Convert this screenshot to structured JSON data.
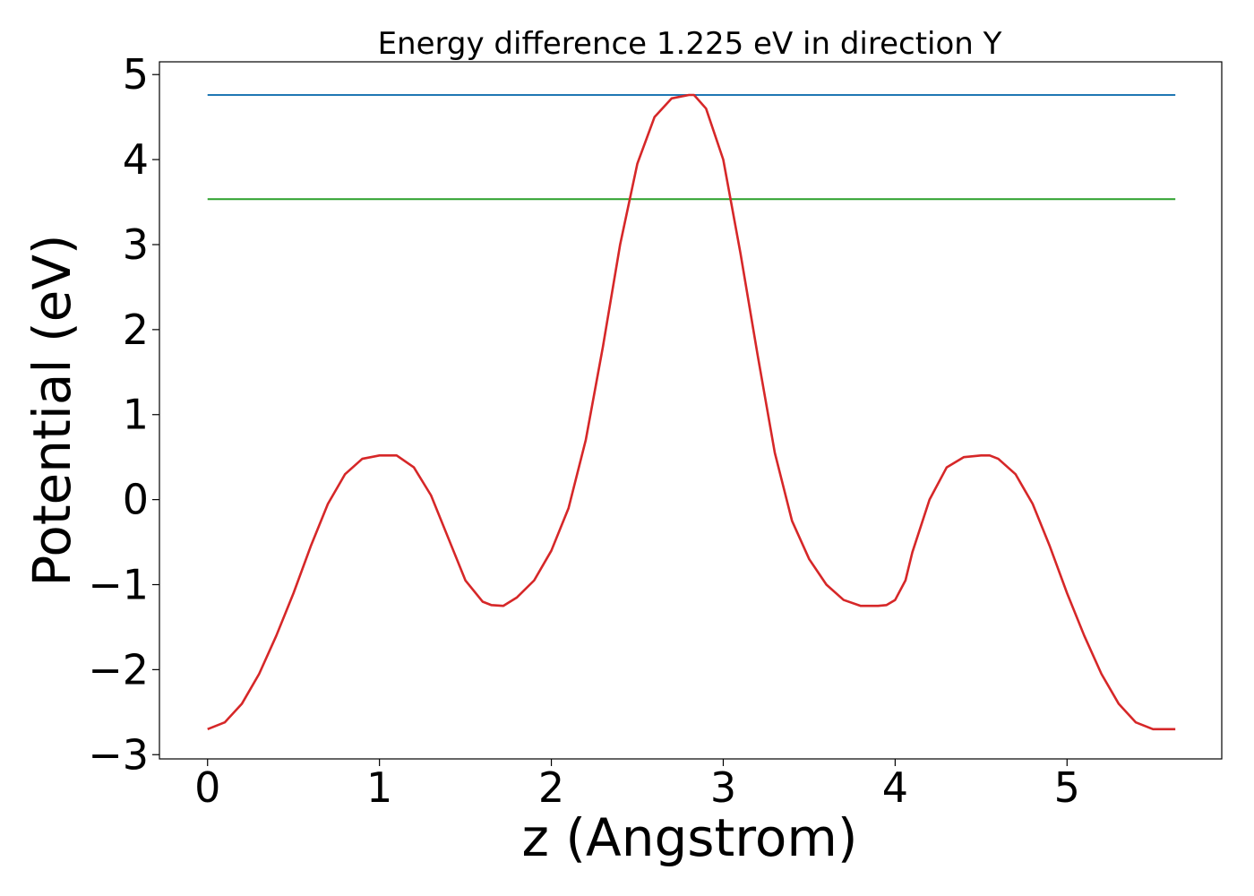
{
  "chart_data": {
    "type": "line",
    "title": "Energy difference 1.225 eV in direction Y",
    "xlabel": "z (Angstrom)",
    "ylabel": "Potential (eV)",
    "xlim": [
      -0.28,
      5.9
    ],
    "ylim": [
      -3.05,
      5.15
    ],
    "x_ticks": [
      0,
      1,
      2,
      3,
      4,
      5
    ],
    "x_tick_labels": [
      "0",
      "1",
      "2",
      "3",
      "4",
      "5"
    ],
    "y_ticks": [
      -3,
      -2,
      -1,
      0,
      1,
      2,
      3,
      4,
      5
    ],
    "y_tick_labels": [
      "−3",
      "−2",
      "−1",
      "0",
      "1",
      "2",
      "3",
      "4",
      "5"
    ],
    "grid": false,
    "series": [
      {
        "color": "#d62728",
        "x": [
          0.0,
          0.1,
          0.2,
          0.3,
          0.4,
          0.5,
          0.6,
          0.7,
          0.8,
          0.9,
          1.0,
          1.1,
          1.2,
          1.3,
          1.4,
          1.5,
          1.6,
          1.65,
          1.72,
          1.8,
          1.9,
          2.0,
          2.1,
          2.2,
          2.3,
          2.4,
          2.5,
          2.6,
          2.7,
          2.8,
          2.83,
          2.9,
          3.0,
          3.1,
          3.2,
          3.3,
          3.4,
          3.5,
          3.6,
          3.7,
          3.8,
          3.9,
          3.95,
          4.0,
          4.06,
          4.1,
          4.2,
          4.3,
          4.4,
          4.5,
          4.55,
          4.6,
          4.7,
          4.8,
          4.9,
          5.0,
          5.1,
          5.2,
          5.3,
          5.4,
          5.5,
          5.6,
          5.63
        ],
        "y": [
          -2.7,
          -2.62,
          -2.4,
          -2.05,
          -1.6,
          -1.1,
          -0.55,
          -0.05,
          0.3,
          0.48,
          0.52,
          0.52,
          0.38,
          0.05,
          -0.45,
          -0.95,
          -1.2,
          -1.24,
          -1.25,
          -1.15,
          -0.95,
          -0.6,
          -0.1,
          0.7,
          1.8,
          3.0,
          3.95,
          4.5,
          4.72,
          4.76,
          4.76,
          4.6,
          4.0,
          2.9,
          1.7,
          0.55,
          -0.25,
          -0.7,
          -1.0,
          -1.18,
          -1.25,
          -1.25,
          -1.24,
          -1.18,
          -0.95,
          -0.62,
          0.0,
          0.38,
          0.5,
          0.52,
          0.52,
          0.48,
          0.3,
          -0.05,
          -0.55,
          -1.1,
          -1.6,
          -2.05,
          -2.4,
          -2.62,
          -2.7,
          -2.7,
          -2.7
        ]
      },
      {
        "color": "#1f77b4",
        "x": [
          0.0,
          5.63
        ],
        "y": [
          4.76,
          4.76
        ]
      },
      {
        "color": "#2ca02c",
        "x": [
          0.0,
          5.63
        ],
        "y": [
          3.535,
          3.535
        ]
      }
    ]
  }
}
